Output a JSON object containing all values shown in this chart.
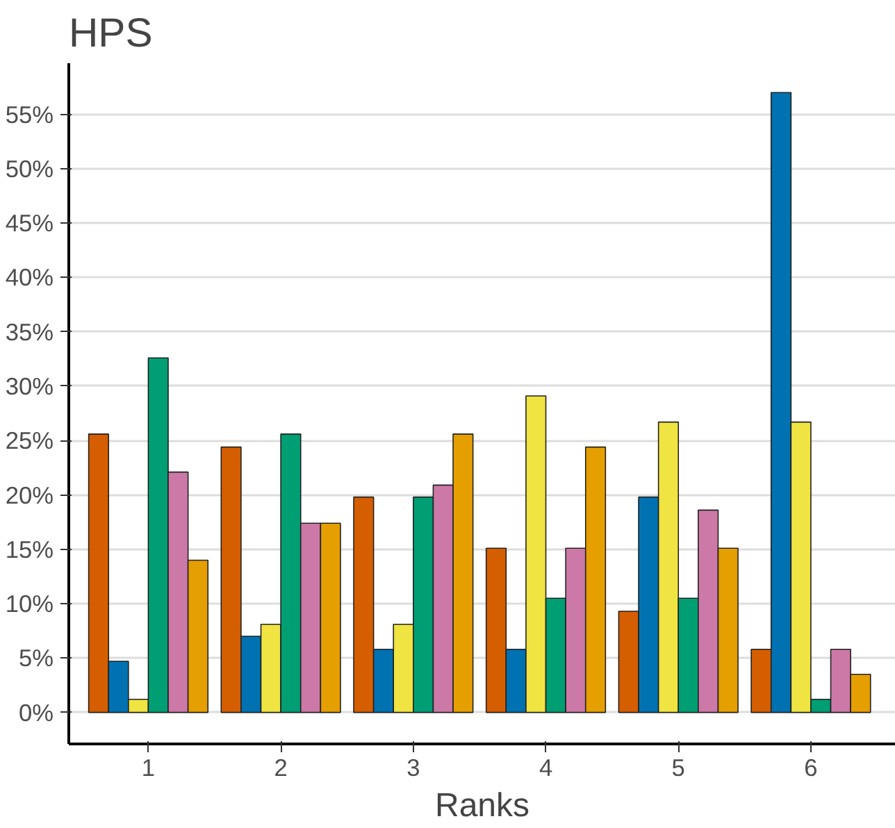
{
  "chart_data": {
    "type": "bar",
    "title": "HPS",
    "xlabel": "Ranks",
    "categories": [
      "1",
      "2",
      "3",
      "4",
      "5",
      "6"
    ],
    "series": [
      {
        "color": "#d55e00",
        "values": [
          25.6,
          24.4,
          19.8,
          15.1,
          9.3,
          5.8
        ]
      },
      {
        "color": "#0072b2",
        "values": [
          4.7,
          7.0,
          5.8,
          5.8,
          19.8,
          57.0
        ]
      },
      {
        "color": "#f0e442",
        "values": [
          1.2,
          8.1,
          8.1,
          29.1,
          26.7,
          26.7
        ]
      },
      {
        "color": "#009e73",
        "values": [
          32.6,
          25.6,
          19.8,
          10.5,
          10.5,
          1.2
        ]
      },
      {
        "color": "#cc79a7",
        "values": [
          22.1,
          17.4,
          20.9,
          15.1,
          18.6,
          5.8
        ]
      },
      {
        "color": "#e69f00",
        "values": [
          14.0,
          17.4,
          25.6,
          24.4,
          15.1,
          3.5
        ]
      }
    ],
    "ylim": [
      -2.9,
      59.7
    ],
    "yticks": [
      {
        "value": 0,
        "label": "0%"
      },
      {
        "value": 5,
        "label": "5%"
      },
      {
        "value": 10,
        "label": "10%"
      },
      {
        "value": 15,
        "label": "15%"
      },
      {
        "value": 20,
        "label": "20%"
      },
      {
        "value": 25,
        "label": "25%"
      },
      {
        "value": 30,
        "label": "30%"
      },
      {
        "value": 35,
        "label": "35%"
      },
      {
        "value": 40,
        "label": "40%"
      },
      {
        "value": 45,
        "label": "45%"
      },
      {
        "value": 50,
        "label": "50%"
      },
      {
        "value": 55,
        "label": "55%"
      }
    ],
    "grid": "y"
  }
}
